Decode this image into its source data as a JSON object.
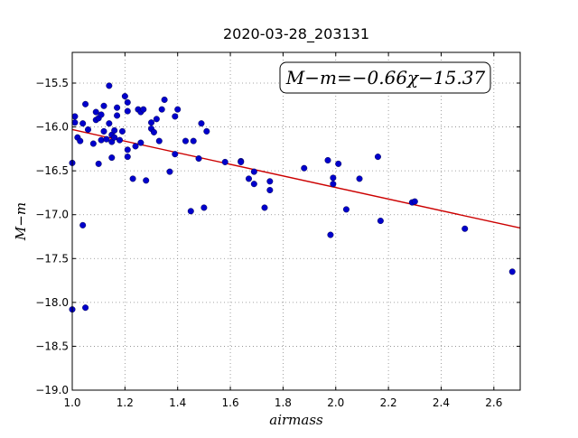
{
  "chart_data": {
    "type": "scatter",
    "title": "2020-03-28_203131",
    "xlabel": "airmass",
    "ylabel": "M−m",
    "xlim": [
      1.0,
      2.7
    ],
    "ylim": [
      -19.0,
      -15.15
    ],
    "xticks": [
      1.0,
      1.2,
      1.4,
      1.6,
      1.8,
      2.0,
      2.2,
      2.4,
      2.6
    ],
    "xtick_labels": [
      "1.0",
      "1.2",
      "1.4",
      "1.6",
      "1.8",
      "2.0",
      "2.2",
      "2.4",
      "2.6"
    ],
    "yticks": [
      -19.0,
      -18.5,
      -18.0,
      -17.5,
      -17.0,
      -16.5,
      -16.0,
      -15.5
    ],
    "ytick_labels": [
      "−19.0",
      "−18.5",
      "−18.0",
      "−17.5",
      "−17.0",
      "−16.5",
      "−16.0",
      "−15.5"
    ],
    "grid": true,
    "annotation": "M−m=−0.66χ−15.37",
    "annotation_placement": "top-right",
    "fit_line": {
      "slope": -0.66,
      "intercept": -15.37,
      "color": "#cc0000"
    },
    "marker_color": "#0000cc",
    "points": [
      [
        1.0,
        -16.41
      ],
      [
        1.0,
        -18.08
      ],
      [
        1.01,
        -15.88
      ],
      [
        1.01,
        -15.95
      ],
      [
        1.02,
        -16.12
      ],
      [
        1.03,
        -16.16
      ],
      [
        1.04,
        -15.96
      ],
      [
        1.04,
        -17.12
      ],
      [
        1.05,
        -18.06
      ],
      [
        1.05,
        -15.74
      ],
      [
        1.06,
        -16.03
      ],
      [
        1.08,
        -16.19
      ],
      [
        1.09,
        -15.83
      ],
      [
        1.09,
        -15.92
      ],
      [
        1.1,
        -16.42
      ],
      [
        1.1,
        -15.9
      ],
      [
        1.11,
        -15.86
      ],
      [
        1.11,
        -16.15
      ],
      [
        1.12,
        -16.05
      ],
      [
        1.12,
        -15.76
      ],
      [
        1.13,
        -16.14
      ],
      [
        1.14,
        -15.53
      ],
      [
        1.14,
        -15.96
      ],
      [
        1.15,
        -16.09
      ],
      [
        1.15,
        -16.17
      ],
      [
        1.15,
        -16.35
      ],
      [
        1.16,
        -16.12
      ],
      [
        1.16,
        -16.04
      ],
      [
        1.17,
        -15.87
      ],
      [
        1.17,
        -15.78
      ],
      [
        1.18,
        -16.15
      ],
      [
        1.19,
        -16.05
      ],
      [
        1.2,
        -15.65
      ],
      [
        1.21,
        -16.34
      ],
      [
        1.21,
        -15.72
      ],
      [
        1.21,
        -15.82
      ],
      [
        1.21,
        -16.26
      ],
      [
        1.23,
        -16.59
      ],
      [
        1.24,
        -16.22
      ],
      [
        1.25,
        -15.8
      ],
      [
        1.26,
        -16.18
      ],
      [
        1.26,
        -15.83
      ],
      [
        1.27,
        -15.8
      ],
      [
        1.28,
        -16.61
      ],
      [
        1.3,
        -16.02
      ],
      [
        1.3,
        -15.95
      ],
      [
        1.31,
        -16.06
      ],
      [
        1.32,
        -15.91
      ],
      [
        1.33,
        -16.16
      ],
      [
        1.34,
        -15.8
      ],
      [
        1.35,
        -15.69
      ],
      [
        1.37,
        -16.51
      ],
      [
        1.39,
        -16.31
      ],
      [
        1.39,
        -15.88
      ],
      [
        1.4,
        -15.8
      ],
      [
        1.43,
        -16.16
      ],
      [
        1.45,
        -16.96
      ],
      [
        1.46,
        -16.16
      ],
      [
        1.48,
        -16.36
      ],
      [
        1.49,
        -15.96
      ],
      [
        1.5,
        -16.92
      ],
      [
        1.51,
        -16.05
      ],
      [
        1.58,
        -16.4
      ],
      [
        1.64,
        -16.39
      ],
      [
        1.64,
        -16.4
      ],
      [
        1.67,
        -16.59
      ],
      [
        1.69,
        -16.65
      ],
      [
        1.69,
        -16.51
      ],
      [
        1.73,
        -16.92
      ],
      [
        1.75,
        -16.72
      ],
      [
        1.75,
        -16.62
      ],
      [
        1.88,
        -16.47
      ],
      [
        1.97,
        -16.38
      ],
      [
        1.98,
        -17.23
      ],
      [
        1.99,
        -16.65
      ],
      [
        1.99,
        -16.58
      ],
      [
        2.01,
        -16.42
      ],
      [
        2.04,
        -16.94
      ],
      [
        2.09,
        -16.59
      ],
      [
        2.16,
        -16.34
      ],
      [
        2.17,
        -17.07
      ],
      [
        2.29,
        -16.86
      ],
      [
        2.3,
        -16.85
      ],
      [
        2.49,
        -17.16
      ],
      [
        2.67,
        -17.65
      ]
    ]
  }
}
